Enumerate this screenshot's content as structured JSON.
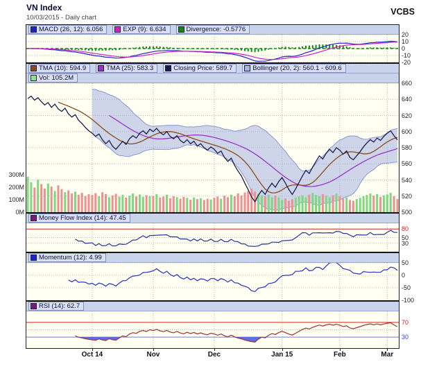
{
  "header": {
    "title": "VN Index",
    "subtitle": "10/03/2015 - Daily chart",
    "brand": "VCBS"
  },
  "chart_data": {
    "type": "line",
    "title": "VN Index",
    "subtitle": "10/03/2015 - Daily chart",
    "x_ticks": {
      "labels": [
        "Oct 14",
        "Nov",
        "Dec",
        "Jan 15",
        "Feb",
        "Mar"
      ],
      "indices": [
        19,
        37,
        55,
        75,
        92,
        106
      ]
    },
    "close": [
      641,
      644,
      639,
      642,
      637,
      633,
      636,
      630,
      634,
      628,
      625,
      629,
      622,
      618,
      621,
      614,
      610,
      605,
      601,
      598,
      594,
      597,
      590,
      585,
      589,
      582,
      578,
      583,
      588,
      584,
      591,
      595,
      592,
      598,
      601,
      597,
      603,
      600,
      604,
      599,
      596,
      600,
      594,
      591,
      595,
      589,
      586,
      590,
      585,
      588,
      582,
      585,
      580,
      577,
      581,
      578,
      573,
      576,
      568,
      563,
      567,
      558,
      551,
      545,
      536,
      528,
      519,
      513,
      521,
      527,
      522,
      530,
      536,
      531,
      538,
      543,
      536,
      528,
      522,
      529,
      537,
      545,
      552,
      548,
      556,
      563,
      570,
      566,
      573,
      578,
      574,
      580,
      577,
      572,
      576,
      568,
      565,
      570,
      575,
      581,
      586,
      590,
      587,
      592,
      589,
      594,
      598,
      601,
      595,
      589.7
    ],
    "volume_m": [
      285,
      240,
      198,
      260,
      225,
      190,
      230,
      205,
      170,
      215,
      185,
      160,
      175,
      150,
      165,
      140,
      155,
      130,
      145,
      138,
      152,
      128,
      160,
      145,
      120,
      135,
      148,
      125,
      140,
      118,
      132,
      150,
      126,
      142,
      122,
      136,
      128,
      130,
      145,
      118,
      125,
      140,
      112,
      128,
      120,
      108,
      122,
      115,
      100,
      118,
      105,
      112,
      98,
      108,
      102,
      115,
      125,
      108,
      132,
      120,
      140,
      128,
      150,
      135,
      158,
      170,
      190,
      165,
      148,
      135,
      128,
      140,
      120,
      132,
      118,
      98,
      110,
      92,
      105,
      118,
      126,
      135,
      120,
      142,
      155,
      138,
      128,
      145,
      132,
      120,
      136,
      148,
      125,
      110,
      118,
      98,
      92,
      105,
      115,
      128,
      138,
      150,
      132,
      145,
      122,
      135,
      142,
      155,
      128,
      105.2
    ],
    "last_values": {
      "close": 589.7,
      "tma10": 594.9,
      "tma25": 583.3,
      "bollinger_lower": 560.1,
      "bollinger_upper": 609.6,
      "volume_m": 105.2,
      "macd": 6.056,
      "exp": 6.634,
      "divergence": -0.5776,
      "mfi": 47.45,
      "momentum": 4.99,
      "rsi": 62.7
    },
    "panels": {
      "macd": {
        "range": [
          -20,
          20
        ],
        "yticks": [
          {
            "v": 20,
            "t": "20"
          },
          {
            "v": 10,
            "t": "10"
          },
          {
            "v": 0,
            "t": "0"
          },
          {
            "v": -10,
            "t": "-10"
          },
          {
            "v": -20,
            "t": "-20"
          }
        ],
        "legend": [
          {
            "label": "MACD (26, 12): 6.056",
            "color": "#2222cc"
          },
          {
            "label": "EXP (9): 6.634",
            "color": "#cc22cc"
          },
          {
            "label": "Divergence: -0.5776",
            "color": "#118811"
          }
        ]
      },
      "price": {
        "range": [
          500,
          660
        ],
        "yticks": [
          {
            "v": 660,
            "t": "660"
          },
          {
            "v": 640,
            "t": "640"
          },
          {
            "v": 620,
            "t": "620"
          },
          {
            "v": 600,
            "t": "600"
          },
          {
            "v": 580,
            "t": "580"
          },
          {
            "v": 560,
            "t": "560"
          },
          {
            "v": 540,
            "t": "540"
          },
          {
            "v": 520,
            "t": "520"
          },
          {
            "v": 500,
            "t": "500"
          }
        ],
        "vol_range": [
          0,
          300
        ],
        "vol_ticks": [
          {
            "v": 300,
            "t": "300M"
          },
          {
            "v": 200,
            "t": "200M"
          },
          {
            "v": 100,
            "t": "100M"
          },
          {
            "v": 0,
            "t": "0M"
          }
        ],
        "legend": [
          {
            "label": "TMA (10): 594.9",
            "color": "#8a4a1a"
          },
          {
            "label": "TMA (25): 583.3",
            "color": "#9933cc"
          },
          {
            "label": "Closing Price: 589.7",
            "color": "#1a1a4d"
          },
          {
            "label": "Bollinger (20, 2): 560.1 - 609.6",
            "color": "#aab6e2"
          }
        ],
        "legend2": [
          {
            "label": "Vol: 105.2M",
            "color": "#8fe08f"
          }
        ]
      },
      "mfi": {
        "range": [
          0,
          100
        ],
        "yticks": [
          {
            "v": 80,
            "t": "80",
            "c": "#cc2222"
          },
          {
            "v": 50,
            "t": "50"
          },
          {
            "v": 30,
            "t": "30"
          }
        ],
        "legend": [
          {
            "label": "Money Flow Index (14): 47.45",
            "color": "#7a1a7a"
          }
        ]
      },
      "mom": {
        "range": [
          -100,
          50
        ],
        "yticks": [
          {
            "v": 50,
            "t": "50"
          },
          {
            "v": 0,
            "t": "0"
          },
          {
            "v": -50,
            "t": "-50"
          },
          {
            "v": -100,
            "t": "-100"
          }
        ],
        "legend": [
          {
            "label": "Momentum (12): 4.99",
            "color": "#2222cc"
          }
        ]
      },
      "rsi": {
        "range": [
          0,
          100
        ],
        "yticks": [
          {
            "v": 70,
            "t": "70",
            "c": "#cc2222"
          },
          {
            "v": 30,
            "t": "30",
            "c": "#3344cc"
          }
        ],
        "legend": [
          {
            "label": "RSI (14): 62.7",
            "color": "#7a1a7a"
          }
        ]
      }
    },
    "colors": {
      "plot_bg": "#fffff2",
      "legend_bg": "#c9d3ec",
      "grid": "#b4b4c4",
      "frame": "#222222",
      "close": "#1a1a4d",
      "tma10": "#8a4a1a",
      "tma25": "#9933cc",
      "bollinger_fill": "#9dabdf",
      "bollinger_edge": "#7f8fd0",
      "macd": "#2222cc",
      "exp": "#cc22cc",
      "divergence": "#118811",
      "vol_up": "#7fd77f",
      "vol_down": "#f08f8f",
      "mfi": "#223399",
      "momentum": "#2233bb",
      "rsi": "#993333",
      "over_fill": "#e03424",
      "under_fill": "#4455dd",
      "thr_red": "#cc2222",
      "thr_blue": "#3344cc"
    }
  }
}
